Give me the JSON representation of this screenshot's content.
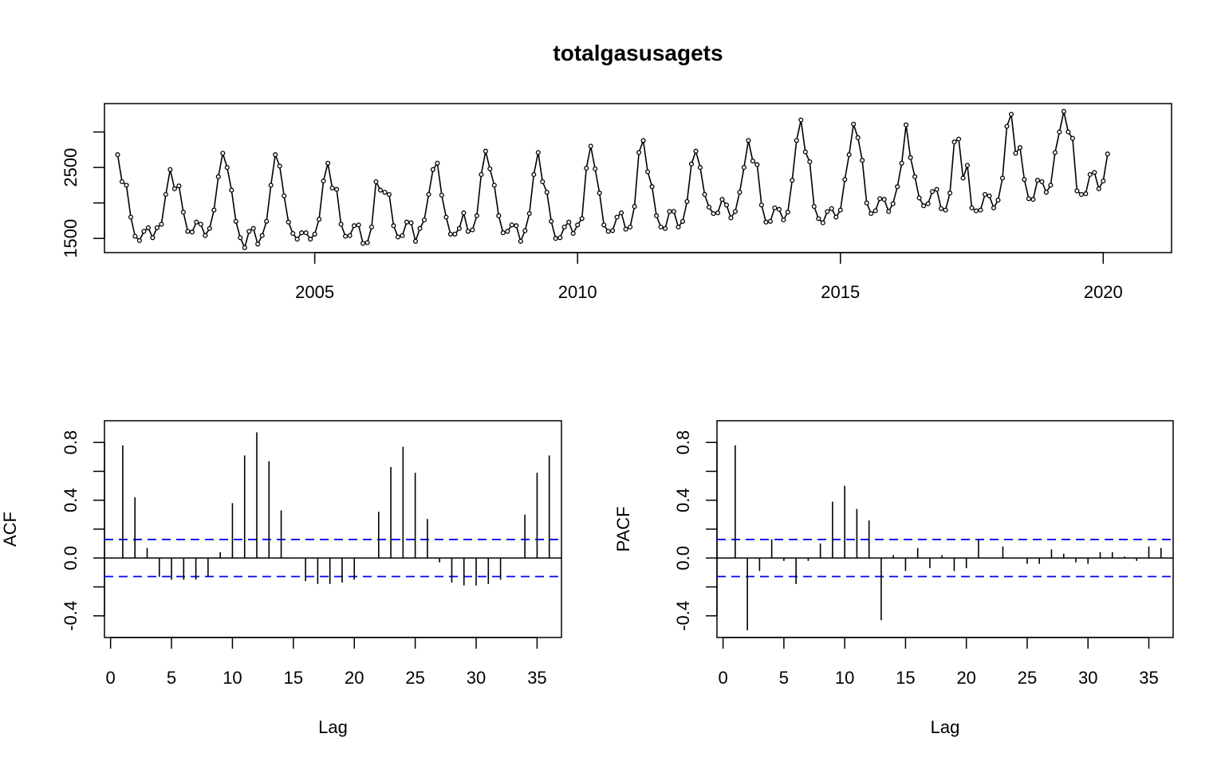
{
  "chart_data": [
    {
      "type": "line",
      "title": "totalgasusagets",
      "xlabel": "",
      "ylabel": "",
      "xlim": [
        2001.0,
        2021.3
      ],
      "ylim": [
        1300,
        3400
      ],
      "x_ticks": [
        2005,
        2010,
        2015,
        2020
      ],
      "y_ticks": [
        1500,
        2500
      ],
      "y_minor_ticks": [
        1500,
        2000,
        2500,
        3000
      ],
      "markers": "open-circle",
      "x_start": 2001.25,
      "x_step": 0.0833333,
      "values": [
        2680,
        2300,
        2250,
        1800,
        1530,
        1470,
        1600,
        1650,
        1510,
        1650,
        1700,
        2120,
        2470,
        2200,
        2240,
        1870,
        1600,
        1590,
        1730,
        1700,
        1540,
        1640,
        1900,
        2370,
        2700,
        2500,
        2180,
        1740,
        1510,
        1370,
        1600,
        1640,
        1420,
        1540,
        1740,
        2250,
        2680,
        2520,
        2100,
        1730,
        1570,
        1490,
        1580,
        1580,
        1490,
        1560,
        1770,
        2310,
        2560,
        2210,
        2190,
        1700,
        1530,
        1540,
        1680,
        1690,
        1430,
        1440,
        1660,
        2300,
        2180,
        2150,
        2120,
        1680,
        1520,
        1540,
        1730,
        1720,
        1460,
        1640,
        1760,
        2120,
        2470,
        2560,
        2110,
        1800,
        1560,
        1560,
        1640,
        1860,
        1600,
        1620,
        1820,
        2400,
        2730,
        2480,
        2250,
        1820,
        1580,
        1600,
        1690,
        1680,
        1460,
        1610,
        1850,
        2400,
        2710,
        2300,
        2150,
        1740,
        1500,
        1510,
        1660,
        1730,
        1570,
        1690,
        1780,
        2490,
        2800,
        2480,
        2140,
        1690,
        1600,
        1610,
        1800,
        1860,
        1630,
        1660,
        1950,
        2710,
        2880,
        2440,
        2230,
        1820,
        1660,
        1640,
        1880,
        1880,
        1660,
        1740,
        2020,
        2550,
        2730,
        2500,
        2120,
        1940,
        1850,
        1860,
        2050,
        1970,
        1790,
        1880,
        2150,
        2500,
        2880,
        2590,
        2540,
        1970,
        1730,
        1740,
        1930,
        1910,
        1760,
        1870,
        2320,
        2880,
        3170,
        2720,
        2580,
        1950,
        1780,
        1720,
        1880,
        1920,
        1800,
        1900,
        2330,
        2680,
        3110,
        2920,
        2600,
        2000,
        1850,
        1890,
        2060,
        2050,
        1880,
        1990,
        2230,
        2560,
        3100,
        2640,
        2370,
        2070,
        1960,
        1990,
        2160,
        2190,
        1920,
        1900,
        2140,
        2860,
        2900,
        2350,
        2530,
        1930,
        1890,
        1900,
        2120,
        2100,
        1930,
        2040,
        2350,
        3080,
        3250,
        2700,
        2780,
        2330,
        2060,
        2050,
        2320,
        2300,
        2150,
        2250,
        2710,
        3000,
        3290,
        3000,
        2910,
        2170,
        2120,
        2130,
        2400,
        2430,
        2200,
        2310,
        2690
      ]
    },
    {
      "type": "bar",
      "ylabel": "ACF",
      "xlabel": "Lag",
      "xlim": [
        -0.5,
        37
      ],
      "ylim": [
        -0.55,
        0.95
      ],
      "x_ticks": [
        0,
        5,
        10,
        15,
        20,
        25,
        30,
        35
      ],
      "y_ticks": [
        -0.4,
        0.0,
        0.4,
        0.8
      ],
      "y_minor_ticks": [
        -0.4,
        -0.2,
        0.0,
        0.2,
        0.4,
        0.6,
        0.8
      ],
      "ci": 0.128,
      "ci_color": "#0000ff",
      "lags": [
        1,
        2,
        3,
        4,
        5,
        6,
        7,
        8,
        9,
        10,
        11,
        12,
        13,
        14,
        15,
        16,
        17,
        18,
        19,
        20,
        21,
        22,
        23,
        24,
        25,
        26,
        27,
        28,
        29,
        30,
        31,
        32,
        33,
        34,
        35,
        36
      ],
      "values": [
        0.78,
        0.42,
        0.07,
        -0.13,
        -0.15,
        -0.15,
        -0.15,
        -0.13,
        0.04,
        0.38,
        0.71,
        0.87,
        0.67,
        0.33,
        0.0,
        -0.16,
        -0.18,
        -0.18,
        -0.17,
        -0.15,
        0.0,
        0.32,
        0.63,
        0.77,
        0.59,
        0.27,
        -0.03,
        -0.17,
        -0.19,
        -0.19,
        -0.18,
        -0.15,
        0.0,
        0.3,
        0.59,
        0.71
      ]
    },
    {
      "type": "bar",
      "ylabel": "PACF",
      "xlabel": "Lag",
      "xlim": [
        -0.5,
        37
      ],
      "ylim": [
        -0.55,
        0.95
      ],
      "x_ticks": [
        0,
        5,
        10,
        15,
        20,
        25,
        30,
        35
      ],
      "y_ticks": [
        -0.4,
        0.0,
        0.4,
        0.8
      ],
      "y_minor_ticks": [
        -0.4,
        -0.2,
        0.0,
        0.2,
        0.4,
        0.6,
        0.8
      ],
      "ci": 0.128,
      "ci_color": "#0000ff",
      "lags": [
        1,
        2,
        3,
        4,
        5,
        6,
        7,
        8,
        9,
        10,
        11,
        12,
        13,
        14,
        15,
        16,
        17,
        18,
        19,
        20,
        21,
        22,
        23,
        24,
        25,
        26,
        27,
        28,
        29,
        30,
        31,
        32,
        33,
        34,
        35,
        36
      ],
      "values": [
        0.78,
        -0.5,
        -0.09,
        0.13,
        -0.02,
        -0.18,
        -0.02,
        0.1,
        0.39,
        0.5,
        0.34,
        0.26,
        -0.43,
        0.02,
        -0.09,
        0.07,
        -0.07,
        0.02,
        -0.09,
        -0.07,
        0.13,
        0.0,
        0.08,
        0.0,
        -0.04,
        -0.04,
        0.06,
        0.03,
        -0.03,
        -0.04,
        0.04,
        0.04,
        0.01,
        -0.02,
        0.08,
        0.07
      ]
    }
  ]
}
